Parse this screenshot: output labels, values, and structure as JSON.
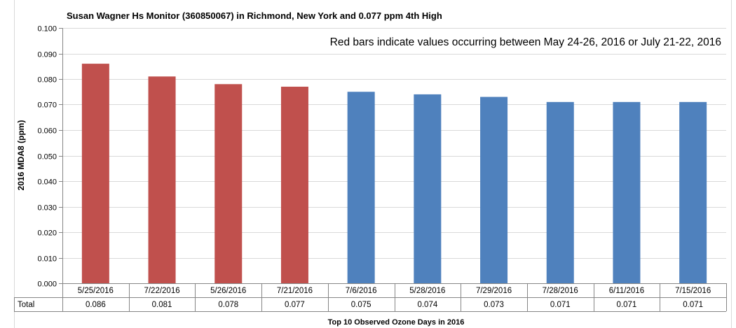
{
  "chart_data": {
    "type": "bar",
    "title": "Susan Wagner Hs Monitor (360850067)  in Richmond, New York and 0.077 ppm 4th High",
    "annotation": "Red bars indicate values occurring between May 24-26, 2016 or July 21-22, 2016",
    "ylabel": "2016 MDA8 (ppm)",
    "xlabel": "Top 10 Observed Ozone Days in 2016",
    "ylim": [
      0,
      0.1
    ],
    "ytick_step": 0.01,
    "ytick_labels": [
      "0.000",
      "0.010",
      "0.020",
      "0.030",
      "0.040",
      "0.050",
      "0.060",
      "0.070",
      "0.080",
      "0.090",
      "0.100"
    ],
    "grid": true,
    "categories": [
      "5/25/2016",
      "7/22/2016",
      "5/26/2016",
      "7/21/2016",
      "7/6/2016",
      "5/28/2016",
      "7/29/2016",
      "7/28/2016",
      "6/11/2016",
      "7/15/2016"
    ],
    "series": [
      {
        "name": "Total",
        "values": [
          0.086,
          0.081,
          0.078,
          0.077,
          0.075,
          0.074,
          0.073,
          0.071,
          0.071,
          0.071
        ],
        "value_labels": [
          "0.086",
          "0.081",
          "0.078",
          "0.077",
          "0.075",
          "0.074",
          "0.073",
          "0.071",
          "0.071",
          "0.071"
        ]
      }
    ],
    "bar_highlight": [
      true,
      true,
      true,
      true,
      false,
      false,
      false,
      false,
      false,
      false
    ],
    "colors": {
      "highlight": "#c0504d",
      "normal": "#4f81bd",
      "grid": "#d9d9d9",
      "axis": "#868686"
    }
  }
}
